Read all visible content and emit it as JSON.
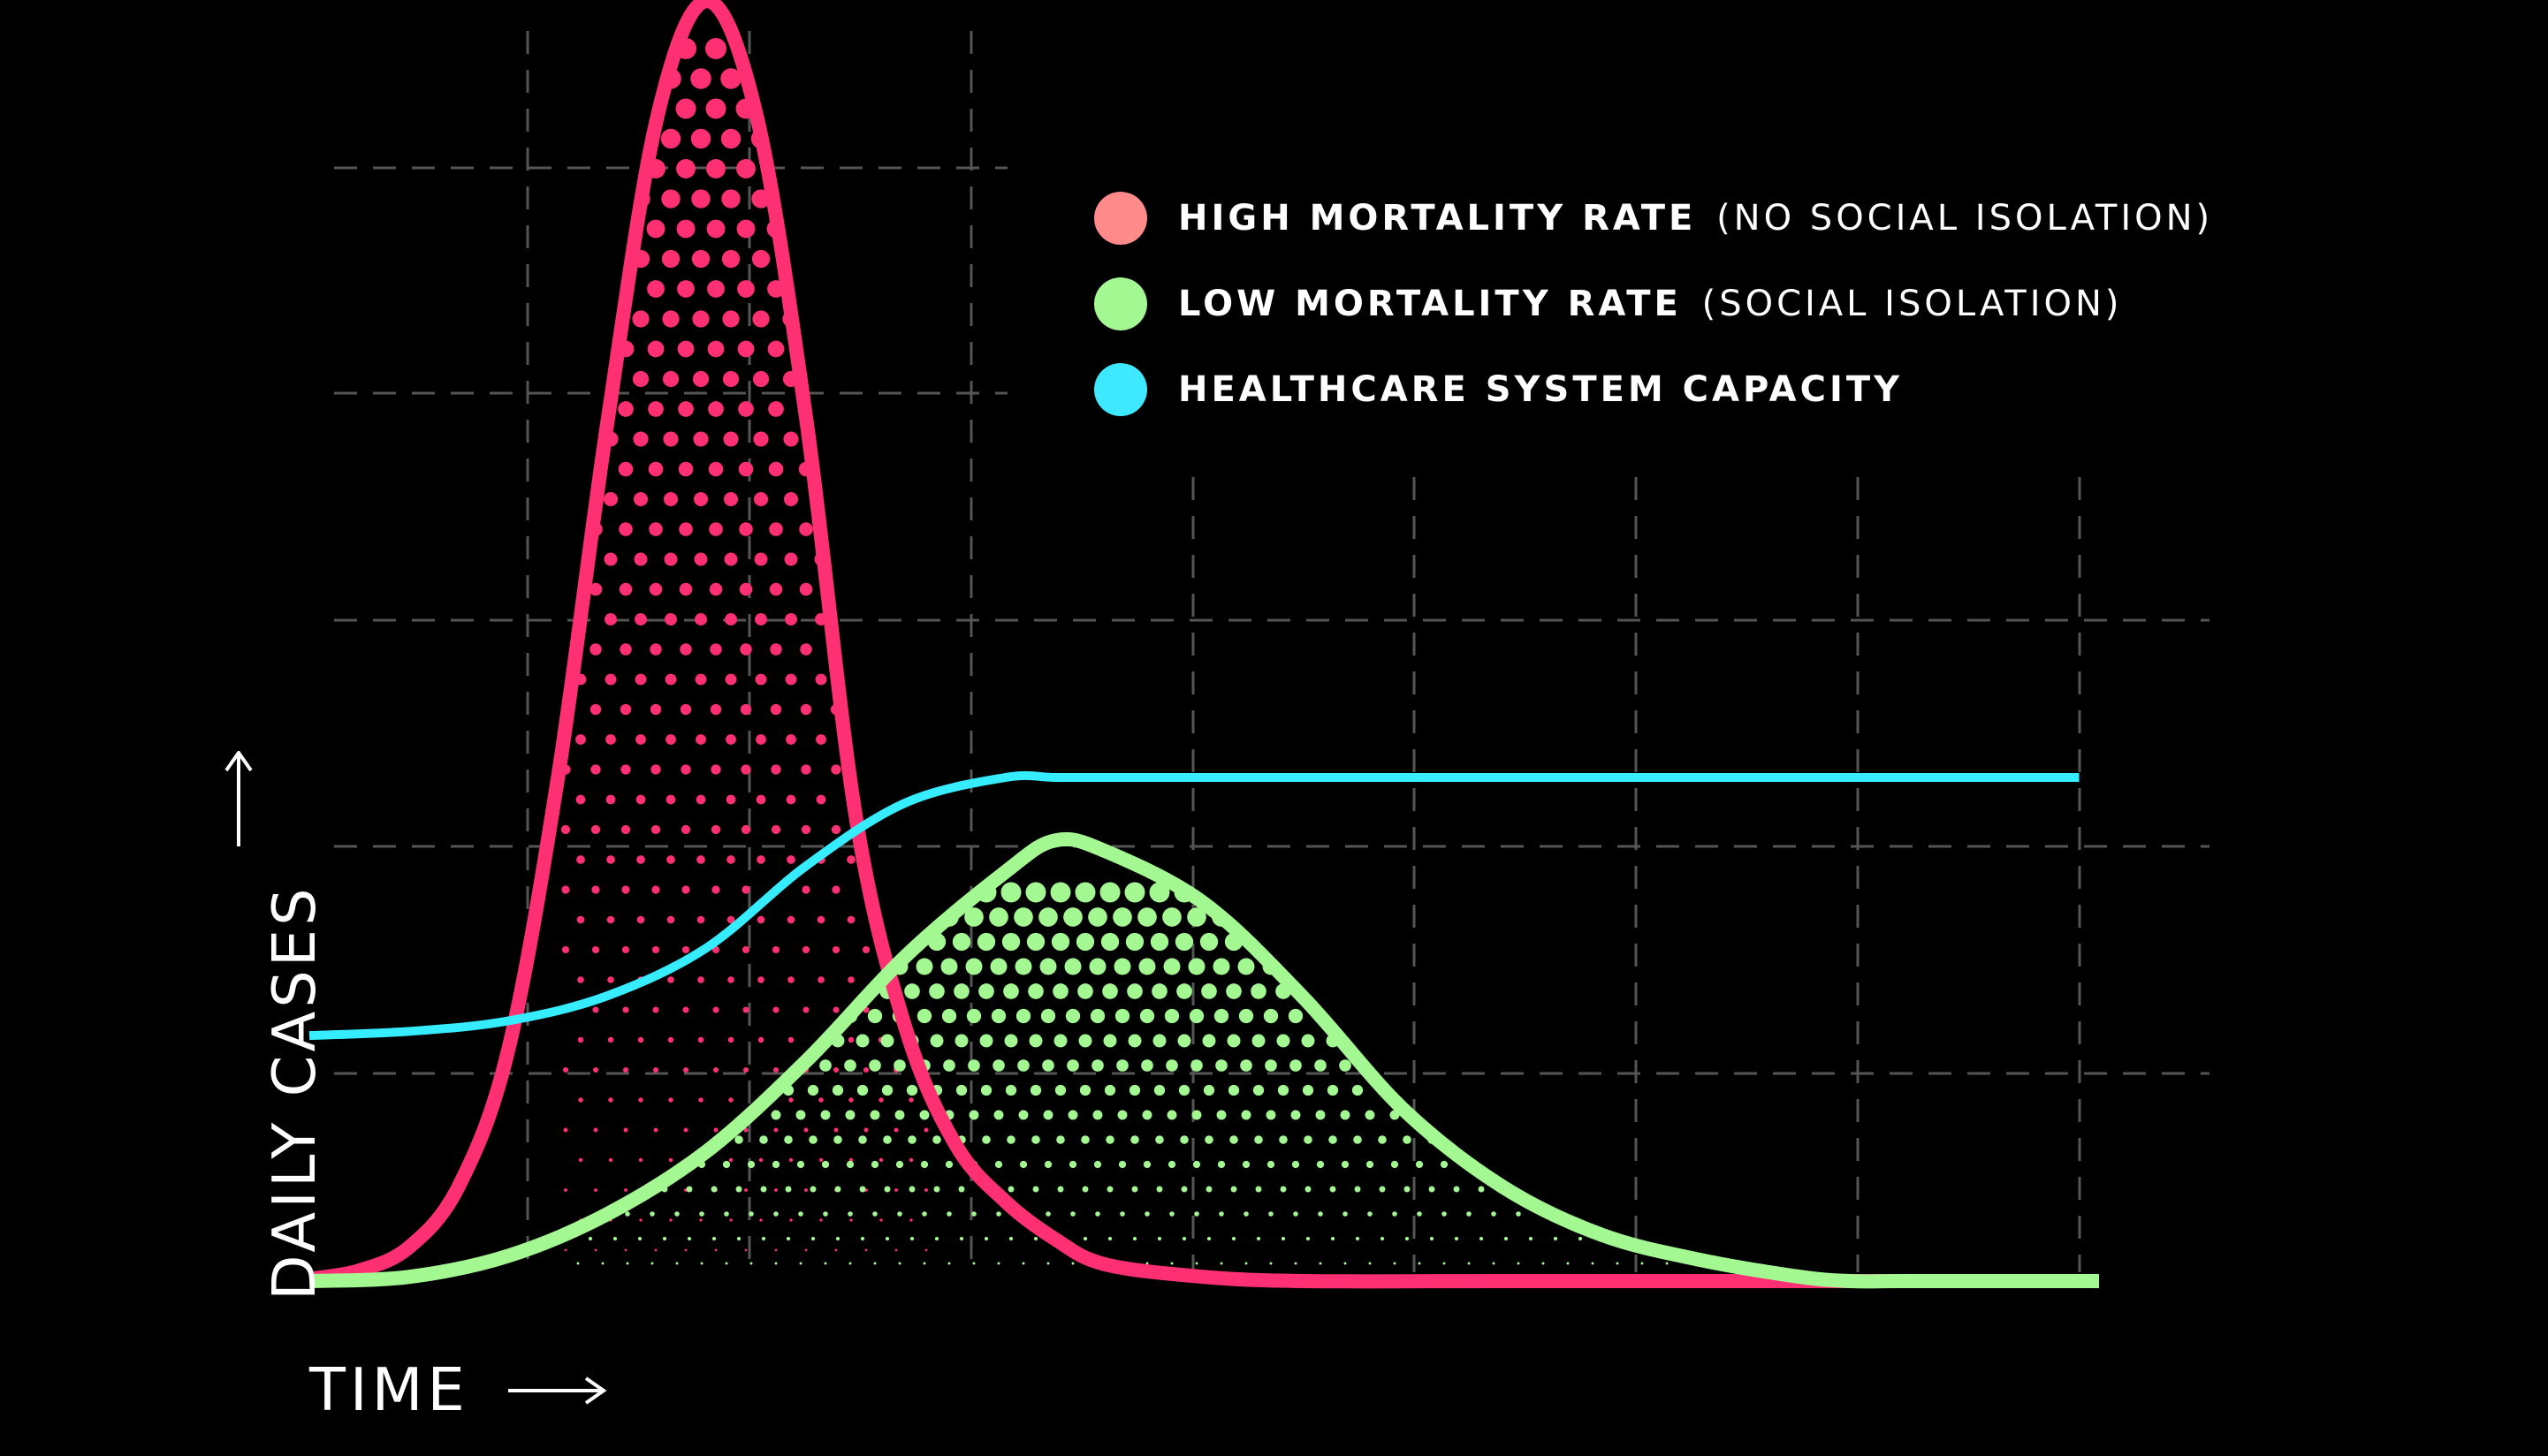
{
  "chart_data": {
    "type": "area",
    "xlabel": "TIME",
    "ylabel": "DAILY CASES",
    "xlim": [
      0,
      10
    ],
    "ylim": [
      0,
      6
    ],
    "grid": true,
    "legend_position": "top-right",
    "series": [
      {
        "name": "HIGH MORTALITY RATE",
        "note": "(NO SOCIAL ISOLATION)",
        "color": "#ff2f74",
        "legend_color": "#ff8a8a",
        "fill": "halftone-dots",
        "x": [
          0,
          0.25,
          0.5,
          0.75,
          1.0,
          1.25,
          1.5,
          1.75,
          2.0,
          2.25,
          2.5,
          2.75,
          3.0,
          3.25,
          3.5,
          3.75,
          4.0,
          4.5,
          5.0,
          6.0,
          7.0,
          8.0
        ],
        "y": [
          0.01,
          0.05,
          0.16,
          0.45,
          1.1,
          2.4,
          4.1,
          5.55,
          6.1,
          5.55,
          4.1,
          2.2,
          1.2,
          0.65,
          0.38,
          0.2,
          0.08,
          0.02,
          0,
          0,
          0,
          0
        ]
      },
      {
        "name": "LOW MORTALITY RATE",
        "note": "(SOCIAL ISOLATION)",
        "color": "#a4f892",
        "legend_color": "#a4f892",
        "fill": "halftone-dots",
        "x": [
          0,
          0.5,
          1.0,
          1.5,
          2.0,
          2.5,
          3.0,
          3.5,
          3.75,
          4.0,
          4.5,
          5.0,
          5.5,
          6.0,
          6.5,
          7.0,
          7.5,
          7.75,
          8.0,
          8.5,
          9.0
        ],
        "y": [
          0,
          0.02,
          0.12,
          0.32,
          0.62,
          1.05,
          1.55,
          1.95,
          2.1,
          2.05,
          1.8,
          1.35,
          0.82,
          0.45,
          0.22,
          0.1,
          0.02,
          0,
          0,
          0,
          0
        ]
      },
      {
        "name": "HEALTHCARE SYSTEM CAPACITY",
        "color": "#35edff",
        "legend_color": "#3ee9ff",
        "fill": "none",
        "x": [
          0,
          0.5,
          1.0,
          1.5,
          2.0,
          2.5,
          3.0,
          3.5,
          3.75,
          4.0,
          5.0,
          6.0,
          7.0,
          8.0,
          8.9
        ],
        "y": [
          1.17,
          1.19,
          1.24,
          1.36,
          1.59,
          1.98,
          2.28,
          2.4,
          2.4,
          2.4,
          2.4,
          2.4,
          2.4,
          2.4,
          2.4
        ]
      }
    ]
  },
  "colors": {
    "background": "#000000",
    "grid": "#555555",
    "text": "#ffffff"
  }
}
